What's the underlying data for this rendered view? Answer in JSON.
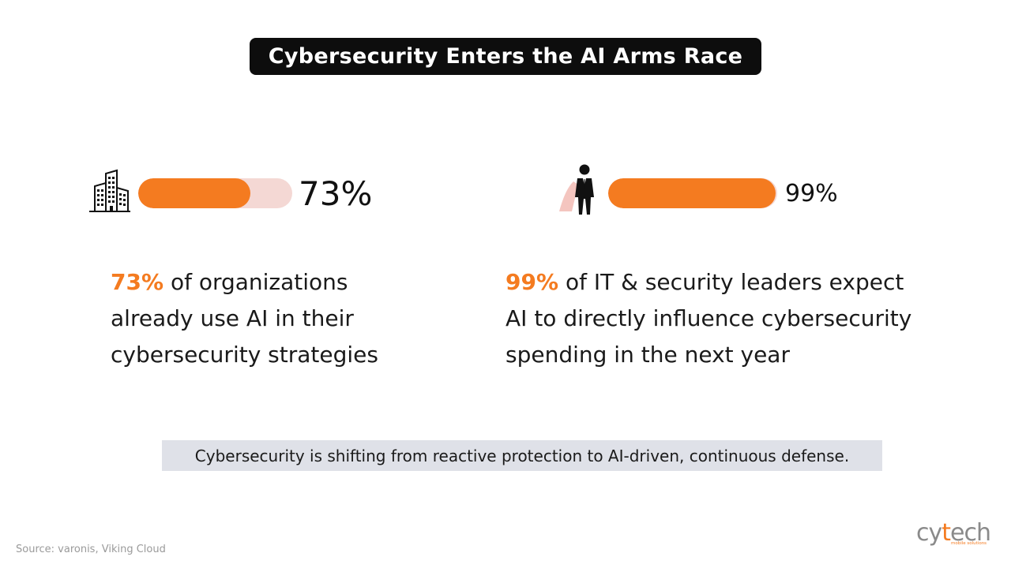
{
  "title": "Cybersecurity Enters the AI Arms Race",
  "colors": {
    "accent": "#f47b20",
    "track_light": "#f4d8d4",
    "title_bg": "#0d0d0d",
    "takeaway_bg": "#dfe1e8"
  },
  "left": {
    "icon": "building-icon",
    "bar_value": 73,
    "pct_label": "73%",
    "highlight": "73%",
    "lines": [
      "of organizations",
      "already use AI in their",
      "cybersecurity strategies"
    ]
  },
  "right": {
    "icon": "businessman-icon",
    "bar_value": 99,
    "pct_label": "99%",
    "highlight": "99%",
    "lines": [
      "of IT & security leaders expect",
      "AI to directly influence cybersecurity",
      "spending in the next year"
    ]
  },
  "takeaway": "Cybersecurity is shifting from reactive protection to AI-driven, continuous defense.",
  "source": "Source: varonis, Viking Cloud",
  "logo": {
    "text_a": "cy",
    "text_t": "t",
    "text_b": "ech",
    "tagline": "mobile solutions"
  }
}
